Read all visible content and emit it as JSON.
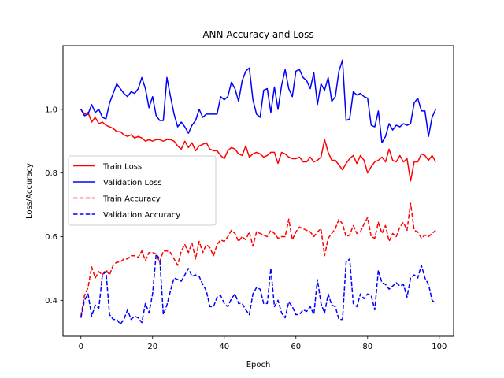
{
  "chart_data": {
    "type": "line",
    "title": "ANN Accuracy and Loss",
    "xlabel": "Epoch",
    "ylabel": "Loss/Accuracy",
    "xlim": [
      -5,
      104
    ],
    "ylim": [
      0.287,
      1.2
    ],
    "xticks": [
      0,
      20,
      40,
      60,
      80,
      100
    ],
    "xtick_labels": [
      "0",
      "20",
      "40",
      "60",
      "80",
      "100"
    ],
    "yticks": [
      0.4,
      0.6,
      0.8,
      1.0
    ],
    "ytick_labels": [
      "0.4",
      "0.6",
      "0.8",
      "1.0"
    ],
    "grid": false,
    "legend_position": "center-left",
    "series": [
      {
        "name": "Train Loss",
        "color": "#ff0000",
        "style": "solid",
        "values": [
          1.0,
          0.985,
          0.99,
          0.96,
          0.975,
          0.955,
          0.96,
          0.95,
          0.945,
          0.94,
          0.93,
          0.93,
          0.92,
          0.915,
          0.92,
          0.91,
          0.915,
          0.91,
          0.9,
          0.905,
          0.9,
          0.905,
          0.905,
          0.9,
          0.905,
          0.905,
          0.9,
          0.885,
          0.875,
          0.9,
          0.88,
          0.895,
          0.87,
          0.885,
          0.89,
          0.895,
          0.875,
          0.87,
          0.87,
          0.855,
          0.845,
          0.87,
          0.88,
          0.875,
          0.86,
          0.855,
          0.885,
          0.85,
          0.86,
          0.865,
          0.86,
          0.85,
          0.855,
          0.865,
          0.865,
          0.83,
          0.865,
          0.86,
          0.85,
          0.845,
          0.845,
          0.85,
          0.835,
          0.835,
          0.85,
          0.835,
          0.84,
          0.85,
          0.905,
          0.865,
          0.84,
          0.84,
          0.825,
          0.81,
          0.83,
          0.845,
          0.855,
          0.83,
          0.855,
          0.84,
          0.8,
          0.82,
          0.835,
          0.84,
          0.85,
          0.835,
          0.875,
          0.84,
          0.835,
          0.855,
          0.835,
          0.845,
          0.775,
          0.835,
          0.835,
          0.86,
          0.855,
          0.84,
          0.855,
          0.835
        ]
      },
      {
        "name": "Validation Loss",
        "color": "#0000ff",
        "style": "solid",
        "values": [
          1.0,
          0.98,
          0.985,
          1.015,
          0.99,
          1.0,
          0.975,
          0.97,
          1.02,
          1.05,
          1.08,
          1.065,
          1.05,
          1.04,
          1.055,
          1.05,
          1.065,
          1.1,
          1.065,
          1.005,
          1.04,
          0.98,
          0.965,
          0.965,
          1.1,
          1.04,
          0.985,
          0.945,
          0.96,
          0.945,
          0.925,
          0.95,
          0.965,
          1.0,
          0.975,
          0.985,
          0.985,
          0.985,
          0.985,
          1.04,
          1.03,
          1.04,
          1.085,
          1.065,
          1.025,
          1.09,
          1.12,
          1.13,
          1.03,
          0.985,
          0.975,
          1.06,
          1.065,
          0.99,
          1.07,
          1.0,
          1.075,
          1.125,
          1.065,
          1.04,
          1.12,
          1.125,
          1.1,
          1.09,
          1.065,
          1.115,
          1.015,
          1.08,
          1.06,
          1.1,
          1.025,
          1.04,
          1.12,
          1.155,
          0.965,
          0.97,
          1.055,
          1.045,
          1.05,
          1.04,
          1.035,
          0.95,
          0.945,
          0.995,
          0.895,
          0.915,
          0.955,
          0.935,
          0.95,
          0.945,
          0.955,
          0.95,
          0.955,
          1.02,
          1.035,
          0.995,
          0.995,
          0.915,
          0.975,
          1.0
        ]
      },
      {
        "name": "Train Accuracy",
        "color": "#ff0000",
        "style": "dashed",
        "values": [
          0.35,
          0.415,
          0.44,
          0.505,
          0.47,
          0.49,
          0.48,
          0.495,
          0.48,
          0.51,
          0.52,
          0.52,
          0.53,
          0.53,
          0.54,
          0.54,
          0.535,
          0.555,
          0.525,
          0.55,
          0.55,
          0.545,
          0.52,
          0.555,
          0.555,
          0.55,
          0.53,
          0.51,
          0.555,
          0.575,
          0.55,
          0.58,
          0.53,
          0.585,
          0.55,
          0.575,
          0.565,
          0.54,
          0.575,
          0.59,
          0.585,
          0.6,
          0.62,
          0.61,
          0.585,
          0.6,
          0.59,
          0.615,
          0.57,
          0.615,
          0.61,
          0.605,
          0.6,
          0.62,
          0.61,
          0.595,
          0.6,
          0.6,
          0.655,
          0.59,
          0.615,
          0.63,
          0.625,
          0.62,
          0.615,
          0.6,
          0.615,
          0.625,
          0.54,
          0.595,
          0.61,
          0.625,
          0.655,
          0.64,
          0.6,
          0.605,
          0.635,
          0.61,
          0.615,
          0.64,
          0.66,
          0.6,
          0.595,
          0.645,
          0.61,
          0.635,
          0.585,
          0.61,
          0.6,
          0.63,
          0.645,
          0.62,
          0.705,
          0.62,
          0.615,
          0.595,
          0.605,
          0.6,
          0.61,
          0.62
        ]
      },
      {
        "name": "Validation Accuracy",
        "color": "#0000ff",
        "style": "dashed",
        "values": [
          0.345,
          0.4,
          0.42,
          0.35,
          0.385,
          0.375,
          0.48,
          0.49,
          0.355,
          0.34,
          0.34,
          0.325,
          0.34,
          0.37,
          0.34,
          0.35,
          0.345,
          0.33,
          0.39,
          0.36,
          0.42,
          0.545,
          0.53,
          0.355,
          0.385,
          0.43,
          0.47,
          0.465,
          0.46,
          0.48,
          0.5,
          0.475,
          0.48,
          0.475,
          0.45,
          0.43,
          0.38,
          0.38,
          0.41,
          0.415,
          0.39,
          0.38,
          0.405,
          0.42,
          0.39,
          0.39,
          0.37,
          0.355,
          0.42,
          0.44,
          0.435,
          0.39,
          0.39,
          0.5,
          0.38,
          0.4,
          0.36,
          0.345,
          0.395,
          0.38,
          0.355,
          0.355,
          0.37,
          0.365,
          0.38,
          0.355,
          0.465,
          0.39,
          0.36,
          0.42,
          0.385,
          0.38,
          0.34,
          0.34,
          0.52,
          0.53,
          0.39,
          0.38,
          0.42,
          0.405,
          0.42,
          0.415,
          0.37,
          0.495,
          0.455,
          0.45,
          0.435,
          0.445,
          0.455,
          0.445,
          0.45,
          0.41,
          0.47,
          0.48,
          0.47,
          0.51,
          0.47,
          0.45,
          0.4,
          0.39
        ]
      }
    ]
  }
}
